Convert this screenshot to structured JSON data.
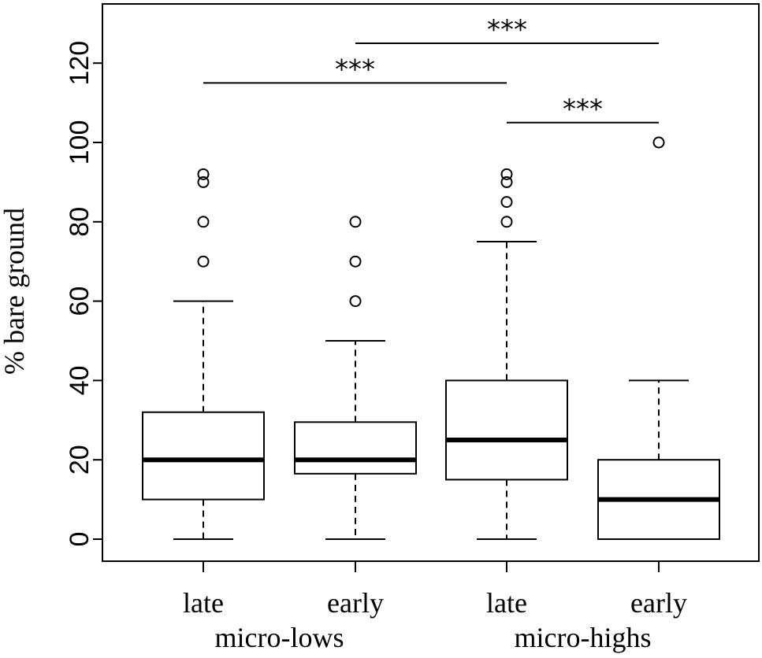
{
  "chart_data": {
    "type": "boxplot",
    "title": "",
    "ylabel": "% bare ground",
    "xlabel": "",
    "ylim": [
      -5,
      130
    ],
    "yticks": [
      0,
      20,
      40,
      60,
      80,
      100,
      120
    ],
    "ytick_labels": [
      "0",
      "20",
      "40",
      "60",
      "80",
      "100",
      "120"
    ],
    "groups": [
      {
        "label": "micro-lows",
        "categories": [
          0,
          1
        ]
      },
      {
        "label": "micro-highs",
        "categories": [
          2,
          3
        ]
      }
    ],
    "boxes": [
      {
        "label": "late",
        "min": 0,
        "q1": 10,
        "median": 20,
        "q3": 32,
        "max": 60,
        "outliers": [
          70,
          80,
          90,
          92
        ]
      },
      {
        "label": "early",
        "min": 0,
        "q1": 16.5,
        "median": 20,
        "q3": 29.5,
        "max": 50,
        "outliers": [
          60,
          70,
          80
        ]
      },
      {
        "label": "late",
        "min": 0,
        "q1": 15,
        "median": 25,
        "q3": 40,
        "max": 75,
        "outliers": [
          80,
          85,
          90,
          92
        ]
      },
      {
        "label": "early",
        "min": 0,
        "q1": 0,
        "median": 10,
        "q3": 20,
        "max": 40,
        "outliers": [
          100
        ]
      }
    ],
    "significance": [
      {
        "from": 0,
        "to": 2,
        "y": 115,
        "label": "***"
      },
      {
        "from": 1,
        "to": 3,
        "y": 125,
        "label": "***"
      },
      {
        "from": 2,
        "to": 3,
        "y": 105,
        "label": "***"
      }
    ],
    "grid": false,
    "legend": "none"
  }
}
